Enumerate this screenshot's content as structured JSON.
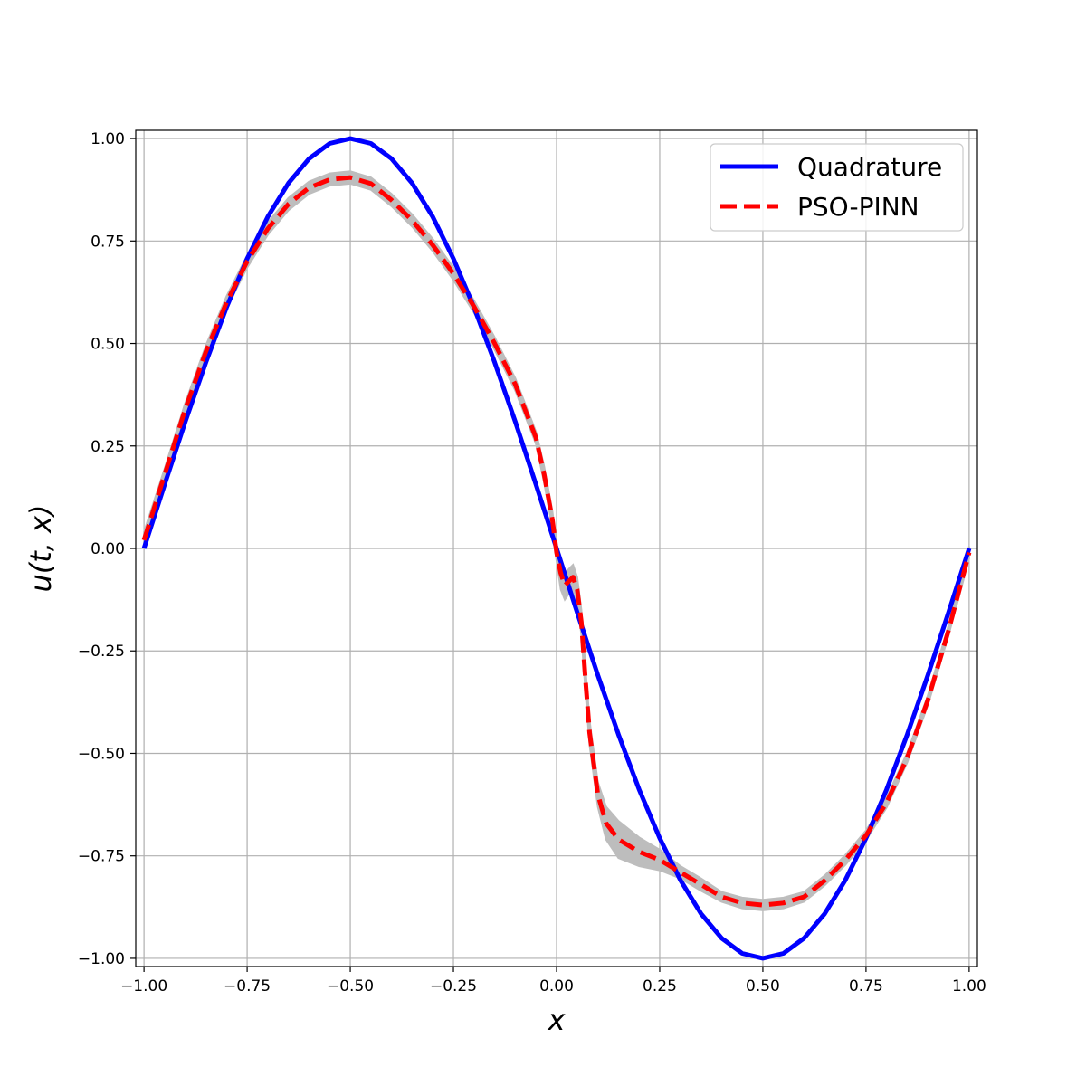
{
  "chart_data": {
    "type": "line",
    "xlabel": "x",
    "ylabel": "u(t, x)",
    "xlim": [
      -1.02,
      1.02
    ],
    "ylim": [
      -1.02,
      1.02
    ],
    "grid": true,
    "legend_position": "top-right",
    "x_ticks": [
      -1.0,
      -0.75,
      -0.5,
      -0.25,
      0.0,
      0.25,
      0.5,
      0.75,
      1.0
    ],
    "x_tick_labels": [
      "−1.00",
      "−0.75",
      "−0.50",
      "−0.25",
      "0.00",
      "0.25",
      "0.50",
      "0.75",
      "1.00"
    ],
    "y_ticks": [
      1.0,
      0.75,
      0.5,
      0.25,
      0.0,
      -0.25,
      -0.5,
      -0.75,
      -1.0
    ],
    "y_tick_labels": [
      "1.00",
      "0.75",
      "0.50",
      "0.25",
      "0.00",
      "−0.25",
      "−0.50",
      "−0.75",
      "−1.00"
    ],
    "series": [
      {
        "name": "Quadrature",
        "color": "#0000ff",
        "style": "solid",
        "x": [
          -1.0,
          -0.95,
          -0.9,
          -0.85,
          -0.8,
          -0.75,
          -0.7,
          -0.65,
          -0.6,
          -0.55,
          -0.5,
          -0.45,
          -0.4,
          -0.35,
          -0.3,
          -0.25,
          -0.2,
          -0.15,
          -0.1,
          -0.05,
          0.0,
          0.05,
          0.1,
          0.15,
          0.2,
          0.25,
          0.3,
          0.35,
          0.4,
          0.45,
          0.5,
          0.55,
          0.6,
          0.65,
          0.7,
          0.75,
          0.8,
          0.85,
          0.9,
          0.95,
          1.0
        ],
        "y": [
          0.0,
          0.156,
          0.309,
          0.454,
          0.588,
          0.707,
          0.809,
          0.891,
          0.951,
          0.988,
          1.0,
          0.988,
          0.951,
          0.891,
          0.809,
          0.707,
          0.588,
          0.454,
          0.309,
          0.156,
          0.0,
          -0.156,
          -0.309,
          -0.454,
          -0.588,
          -0.707,
          -0.809,
          -0.891,
          -0.951,
          -0.988,
          -1.0,
          -0.988,
          -0.951,
          -0.891,
          -0.809,
          -0.707,
          -0.588,
          -0.454,
          -0.309,
          -0.156,
          0.0
        ]
      },
      {
        "name": "PSO-PINN",
        "color": "#ff0000",
        "style": "dashed",
        "x": [
          -1.0,
          -0.95,
          -0.9,
          -0.85,
          -0.8,
          -0.75,
          -0.7,
          -0.65,
          -0.6,
          -0.55,
          -0.5,
          -0.45,
          -0.4,
          -0.35,
          -0.3,
          -0.25,
          -0.2,
          -0.15,
          -0.1,
          -0.05,
          -0.03,
          -0.01,
          0.0,
          0.01,
          0.02,
          0.03,
          0.04,
          0.05,
          0.06,
          0.07,
          0.08,
          0.1,
          0.12,
          0.15,
          0.2,
          0.25,
          0.3,
          0.35,
          0.4,
          0.45,
          0.5,
          0.55,
          0.6,
          0.65,
          0.7,
          0.75,
          0.8,
          0.85,
          0.9,
          0.95,
          1.0
        ],
        "y": [
          0.02,
          0.18,
          0.34,
          0.48,
          0.6,
          0.7,
          0.78,
          0.84,
          0.88,
          0.9,
          0.905,
          0.89,
          0.85,
          0.8,
          0.74,
          0.67,
          0.59,
          0.5,
          0.4,
          0.27,
          0.18,
          0.07,
          -0.01,
          -0.06,
          -0.09,
          -0.08,
          -0.07,
          -0.1,
          -0.18,
          -0.32,
          -0.45,
          -0.6,
          -0.67,
          -0.71,
          -0.74,
          -0.76,
          -0.79,
          -0.82,
          -0.85,
          -0.865,
          -0.87,
          -0.865,
          -0.85,
          -0.81,
          -0.76,
          -0.7,
          -0.62,
          -0.51,
          -0.37,
          -0.2,
          -0.01
        ]
      }
    ],
    "uncertainty_band": {
      "color": "#bdbdbd",
      "x": [
        -1.0,
        -0.95,
        -0.9,
        -0.85,
        -0.8,
        -0.75,
        -0.7,
        -0.65,
        -0.6,
        -0.55,
        -0.5,
        -0.45,
        -0.4,
        -0.35,
        -0.3,
        -0.25,
        -0.2,
        -0.15,
        -0.1,
        -0.05,
        -0.03,
        -0.01,
        0.0,
        0.01,
        0.02,
        0.03,
        0.04,
        0.05,
        0.06,
        0.07,
        0.08,
        0.1,
        0.12,
        0.15,
        0.2,
        0.25,
        0.3,
        0.35,
        0.4,
        0.45,
        0.5,
        0.55,
        0.6,
        0.65,
        0.7,
        0.75,
        0.8,
        0.85,
        0.9,
        0.95,
        1.0
      ],
      "lower": [
        0.0,
        0.165,
        0.325,
        0.465,
        0.585,
        0.685,
        0.765,
        0.825,
        0.865,
        0.885,
        0.89,
        0.875,
        0.835,
        0.785,
        0.725,
        0.655,
        0.575,
        0.485,
        0.385,
        0.255,
        0.16,
        0.05,
        -0.03,
        -0.1,
        -0.125,
        -0.11,
        -0.1,
        -0.13,
        -0.21,
        -0.35,
        -0.48,
        -0.63,
        -0.71,
        -0.755,
        -0.775,
        -0.785,
        -0.805,
        -0.835,
        -0.862,
        -0.878,
        -0.883,
        -0.878,
        -0.862,
        -0.822,
        -0.772,
        -0.712,
        -0.632,
        -0.522,
        -0.382,
        -0.212,
        -0.025
      ],
      "upper": [
        0.04,
        0.195,
        0.355,
        0.495,
        0.615,
        0.715,
        0.795,
        0.855,
        0.895,
        0.915,
        0.92,
        0.905,
        0.865,
        0.815,
        0.755,
        0.685,
        0.605,
        0.515,
        0.415,
        0.285,
        0.2,
        0.09,
        0.01,
        -0.02,
        -0.06,
        -0.05,
        -0.04,
        -0.07,
        -0.15,
        -0.29,
        -0.42,
        -0.57,
        -0.63,
        -0.665,
        -0.705,
        -0.735,
        -0.775,
        -0.805,
        -0.838,
        -0.852,
        -0.857,
        -0.852,
        -0.838,
        -0.798,
        -0.748,
        -0.688,
        -0.608,
        -0.498,
        -0.358,
        -0.188,
        0.005
      ]
    }
  }
}
